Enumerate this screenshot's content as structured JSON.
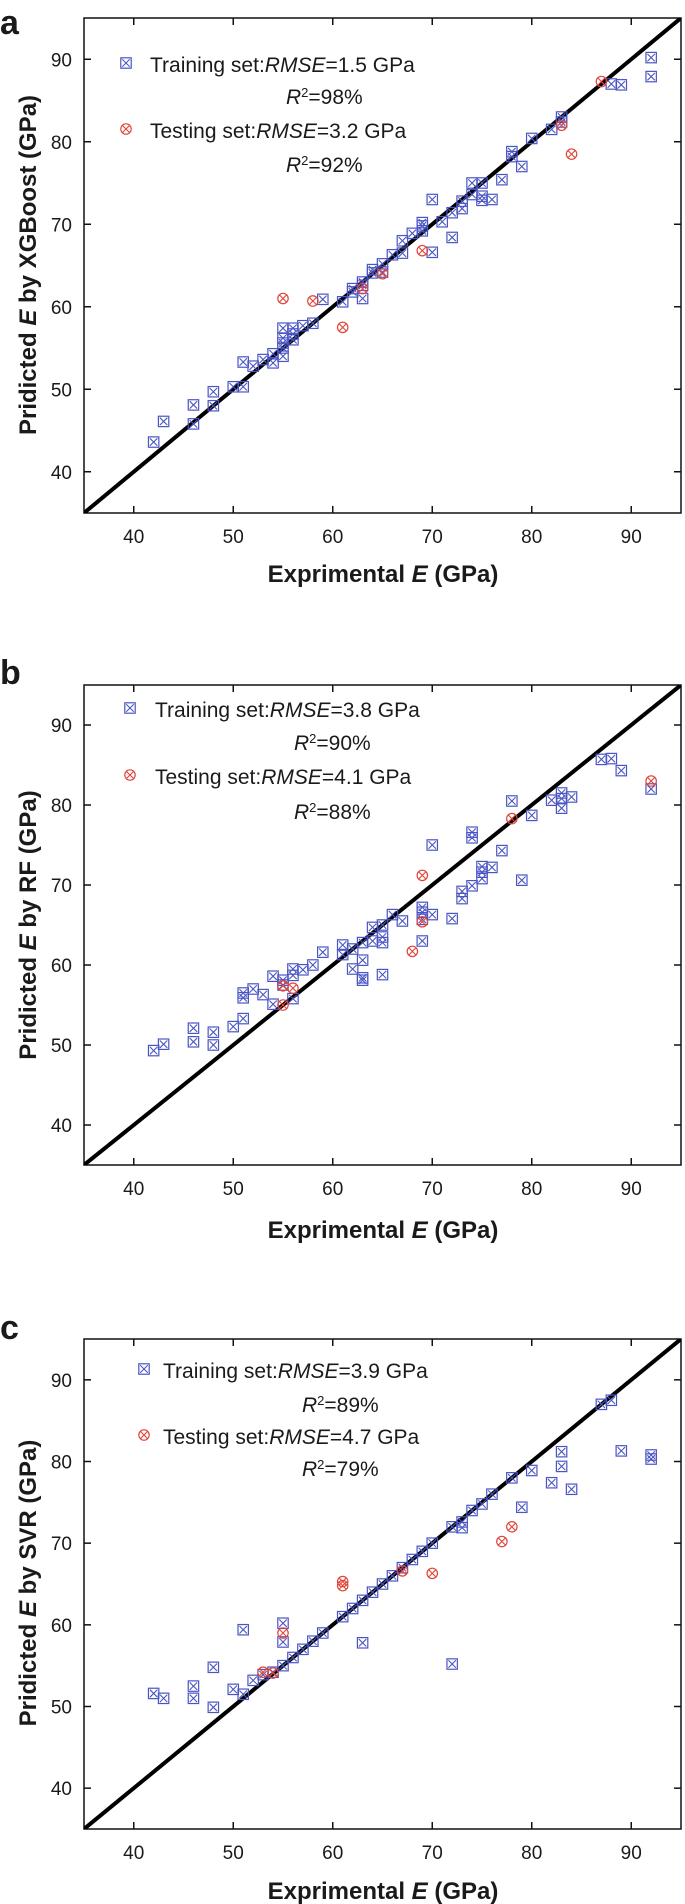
{
  "chart_data": [
    {
      "type": "scatter",
      "panel_label": "a",
      "xlabel": "Exprimental E (GPa)",
      "xlabel_pre": "Exprimental ",
      "xlabel_var": "E",
      "xlabel_post": " (GPa)",
      "ylabel": "Pridicted E by XGBoost (GPa)",
      "ylabel_pre": "Pridicted ",
      "ylabel_var": "E",
      "ylabel_post": " by XGBoost (GPa)",
      "xlim": [
        35,
        95
      ],
      "ylim": [
        35,
        95
      ],
      "xticks": [
        40,
        50,
        60,
        70,
        80,
        90
      ],
      "yticks": [
        40,
        50,
        60,
        70,
        80,
        90
      ],
      "identity_line": true,
      "legend": [
        {
          "name": "Training set:",
          "metric_label": "RMSE",
          "metric_value": "=1.5 GPa",
          "r2_label": "R",
          "r2_value": "=98%",
          "color": "#4a55c4"
        },
        {
          "name": "Testing  set:",
          "metric_label": "RMSE",
          "metric_value": "=3.2 GPa",
          "r2_label": "R",
          "r2_value": "=92%",
          "color": "#e0453a"
        }
      ],
      "series": [
        {
          "name": "Training set",
          "color": "#4a55c4",
          "points": [
            [
              42,
              43.6
            ],
            [
              43,
              46.1
            ],
            [
              46,
              45.8
            ],
            [
              46,
              48.1
            ],
            [
              48,
              48.0
            ],
            [
              48,
              49.7
            ],
            [
              50,
              50.3
            ],
            [
              51,
              50.3
            ],
            [
              51,
              53.3
            ],
            [
              52,
              52.8
            ],
            [
              53,
              53.6
            ],
            [
              54,
              53.2
            ],
            [
              54,
              54.3
            ],
            [
              55,
              54.0
            ],
            [
              55,
              55.0
            ],
            [
              55,
              55.6
            ],
            [
              55,
              56.2
            ],
            [
              55,
              57.4
            ],
            [
              56,
              56.0
            ],
            [
              56,
              56.7
            ],
            [
              56,
              57.4
            ],
            [
              57,
              57.7
            ],
            [
              58,
              58.0
            ],
            [
              59,
              60.9
            ],
            [
              61,
              60.6
            ],
            [
              62,
              61.8
            ],
            [
              62,
              62.2
            ],
            [
              63,
              62.6
            ],
            [
              63,
              63.0
            ],
            [
              63,
              61.0
            ],
            [
              64,
              64.1
            ],
            [
              64,
              64.5
            ],
            [
              65,
              64.2
            ],
            [
              65,
              65.2
            ],
            [
              66,
              66.3
            ],
            [
              67,
              66.5
            ],
            [
              67,
              68.0
            ],
            [
              68,
              68.9
            ],
            [
              69,
              69.2
            ],
            [
              69,
              69.8
            ],
            [
              69,
              70.2
            ],
            [
              70,
              66.6
            ],
            [
              70,
              73.0
            ],
            [
              71,
              70.3
            ],
            [
              72,
              68.4
            ],
            [
              72,
              71.4
            ],
            [
              73,
              71.9
            ],
            [
              73,
              72.8
            ],
            [
              74,
              73.6
            ],
            [
              74,
              75.0
            ],
            [
              75,
              72.9
            ],
            [
              75,
              73.4
            ],
            [
              75,
              75.0
            ],
            [
              76,
              73.0
            ],
            [
              77,
              75.4
            ],
            [
              78,
              78.2
            ],
            [
              78,
              78.8
            ],
            [
              79,
              77.0
            ],
            [
              80,
              80.4
            ],
            [
              82,
              81.5
            ],
            [
              83,
              82.4
            ],
            [
              83,
              83.0
            ],
            [
              88,
              87.0
            ],
            [
              89,
              86.9
            ],
            [
              92,
              87.9
            ],
            [
              92,
              90.2
            ]
          ]
        },
        {
          "name": "Testing set",
          "color": "#e0453a",
          "points": [
            [
              55,
              61.0
            ],
            [
              58,
              60.7
            ],
            [
              61,
              57.5
            ],
            [
              63,
              62.2
            ],
            [
              65,
              64.0
            ],
            [
              69,
              66.8
            ],
            [
              83,
              82.0
            ],
            [
              84,
              78.5
            ],
            [
              87,
              87.3
            ]
          ]
        }
      ]
    },
    {
      "type": "scatter",
      "panel_label": "b",
      "xlabel": "Exprimental E (GPa)",
      "xlabel_pre": "Exprimental ",
      "xlabel_var": "E",
      "xlabel_post": " (GPa)",
      "ylabel": "Pridicted E by RF (GPa)",
      "ylabel_pre": "Pridicted ",
      "ylabel_var": "E",
      "ylabel_post": " by RF (GPa)",
      "xlim": [
        35,
        95
      ],
      "ylim": [
        35,
        95
      ],
      "xticks": [
        40,
        50,
        60,
        70,
        80,
        90
      ],
      "yticks": [
        40,
        50,
        60,
        70,
        80,
        90
      ],
      "identity_line": true,
      "legend": [
        {
          "name": "Training set:",
          "metric_label": "RMSE",
          "metric_value": "=3.8 GPa",
          "r2_label": "R",
          "r2_value": "=90%",
          "color": "#4a55c4"
        },
        {
          "name": "Testing  set:",
          "metric_label": "RMSE",
          "metric_value": "=4.1 GPa",
          "r2_label": "R",
          "r2_value": "=88%",
          "color": "#e0453a"
        }
      ],
      "series": [
        {
          "name": "Training set",
          "color": "#4a55c4",
          "points": [
            [
              42,
              49.3
            ],
            [
              43,
              50.1
            ],
            [
              46,
              50.4
            ],
            [
              46,
              52.1
            ],
            [
              48,
              50.0
            ],
            [
              48,
              51.6
            ],
            [
              50,
              52.3
            ],
            [
              51,
              53.3
            ],
            [
              51,
              55.9
            ],
            [
              51,
              56.5
            ],
            [
              52,
              57.0
            ],
            [
              53,
              56.3
            ],
            [
              54,
              55.1
            ],
            [
              54,
              58.6
            ],
            [
              55,
              57.5
            ],
            [
              55,
              58.1
            ],
            [
              56,
              58.7
            ],
            [
              56,
              59.5
            ],
            [
              56,
              55.8
            ],
            [
              57,
              59.4
            ],
            [
              58,
              60.0
            ],
            [
              59,
              61.6
            ],
            [
              61,
              61.3
            ],
            [
              61,
              62.5
            ],
            [
              62,
              59.5
            ],
            [
              62,
              62.0
            ],
            [
              63,
              58.1
            ],
            [
              63,
              58.4
            ],
            [
              63,
              60.6
            ],
            [
              63,
              62.8
            ],
            [
              64,
              63.0
            ],
            [
              64,
              64.7
            ],
            [
              65,
              58.8
            ],
            [
              65,
              62.8
            ],
            [
              65,
              63.5
            ],
            [
              65,
              65.0
            ],
            [
              66,
              66.3
            ],
            [
              67,
              65.5
            ],
            [
              69,
              63.0
            ],
            [
              69,
              65.7
            ],
            [
              69,
              66.6
            ],
            [
              69,
              67.2
            ],
            [
              70,
              66.3
            ],
            [
              70,
              75.0
            ],
            [
              72,
              65.8
            ],
            [
              73,
              68.3
            ],
            [
              73,
              69.2
            ],
            [
              74,
              69.9
            ],
            [
              74,
              75.9
            ],
            [
              74,
              76.6
            ],
            [
              75,
              70.8
            ],
            [
              75,
              71.6
            ],
            [
              75,
              72.3
            ],
            [
              76,
              72.2
            ],
            [
              77,
              74.3
            ],
            [
              78,
              80.5
            ],
            [
              79,
              70.6
            ],
            [
              80,
              78.7
            ],
            [
              82,
              80.6
            ],
            [
              83,
              79.6
            ],
            [
              83,
              80.8
            ],
            [
              83,
              81.5
            ],
            [
              84,
              81.0
            ],
            [
              87,
              85.7
            ],
            [
              88,
              85.8
            ],
            [
              89,
              84.3
            ],
            [
              92,
              82.0
            ]
          ]
        },
        {
          "name": "Testing set",
          "color": "#e0453a",
          "points": [
            [
              55,
              55.0
            ],
            [
              55,
              57.4
            ],
            [
              56,
              57.1
            ],
            [
              68,
              61.7
            ],
            [
              69,
              65.4
            ],
            [
              69,
              71.2
            ],
            [
              78,
              78.3
            ],
            [
              92,
              83.0
            ]
          ]
        }
      ]
    },
    {
      "type": "scatter",
      "panel_label": "c",
      "xlabel": "Exprimental E (GPa)",
      "xlabel_pre": "Exprimental ",
      "xlabel_var": "E",
      "xlabel_post": " (GPa)",
      "ylabel": "Pridicted E by SVR (GPa)",
      "ylabel_pre": "Pridicted ",
      "ylabel_var": "E",
      "ylabel_post": " by SVR (GPa)",
      "xlim": [
        35,
        95
      ],
      "ylim": [
        35,
        95
      ],
      "xticks": [
        40,
        50,
        60,
        70,
        80,
        90
      ],
      "yticks": [
        40,
        50,
        60,
        70,
        80,
        90
      ],
      "identity_line": true,
      "legend": [
        {
          "name": "Training set:",
          "metric_label": "RMSE",
          "metric_value": "=3.9 GPa",
          "r2_label": "R",
          "r2_value": "=89%",
          "color": "#4a55c4"
        },
        {
          "name": "Testing  set:",
          "metric_label": "RMSE",
          "metric_value": "=4.7 GPa",
          "r2_label": "R",
          "r2_value": "=79%",
          "color": "#e0453a"
        }
      ],
      "series": [
        {
          "name": "Training set",
          "color": "#4a55c4",
          "points": [
            [
              42,
              51.6
            ],
            [
              43,
              51.0
            ],
            [
              46,
              51.0
            ],
            [
              46,
              52.5
            ],
            [
              48,
              49.9
            ],
            [
              48,
              54.8
            ],
            [
              50,
              52.1
            ],
            [
              51,
              51.5
            ],
            [
              51,
              59.4
            ],
            [
              52,
              53.2
            ],
            [
              53,
              53.9
            ],
            [
              54,
              54.2
            ],
            [
              55,
              55.0
            ],
            [
              55,
              57.9
            ],
            [
              55,
              60.2
            ],
            [
              56,
              56.0
            ],
            [
              57,
              57.0
            ],
            [
              58,
              58.0
            ],
            [
              59,
              59.0
            ],
            [
              61,
              61.0
            ],
            [
              62,
              62.0
            ],
            [
              63,
              57.8
            ],
            [
              63,
              63.0
            ],
            [
              64,
              64.0
            ],
            [
              65,
              65.0
            ],
            [
              66,
              66.0
            ],
            [
              67,
              67.0
            ],
            [
              68,
              68.0
            ],
            [
              69,
              69.0
            ],
            [
              70,
              70.0
            ],
            [
              72,
              55.2
            ],
            [
              72,
              72.0
            ],
            [
              73,
              71.9
            ],
            [
              73,
              72.6
            ],
            [
              74,
              74.0
            ],
            [
              75,
              74.8
            ],
            [
              76,
              76.0
            ],
            [
              78,
              78.0
            ],
            [
              79,
              74.4
            ],
            [
              80,
              78.9
            ],
            [
              82,
              77.4
            ],
            [
              83,
              79.4
            ],
            [
              83,
              81.2
            ],
            [
              84,
              76.6
            ],
            [
              87,
              87.0
            ],
            [
              88,
              87.5
            ],
            [
              89,
              81.3
            ],
            [
              92,
              80.3
            ],
            [
              92,
              80.8
            ]
          ]
        },
        {
          "name": "Testing set",
          "color": "#e0453a",
          "points": [
            [
              53,
              54.2
            ],
            [
              54,
              54.1
            ],
            [
              55,
              59.0
            ],
            [
              61,
              64.8
            ],
            [
              61,
              65.3
            ],
            [
              67,
              66.6
            ],
            [
              70,
              66.3
            ],
            [
              77,
              70.2
            ],
            [
              78,
              72.0
            ]
          ]
        }
      ]
    }
  ]
}
